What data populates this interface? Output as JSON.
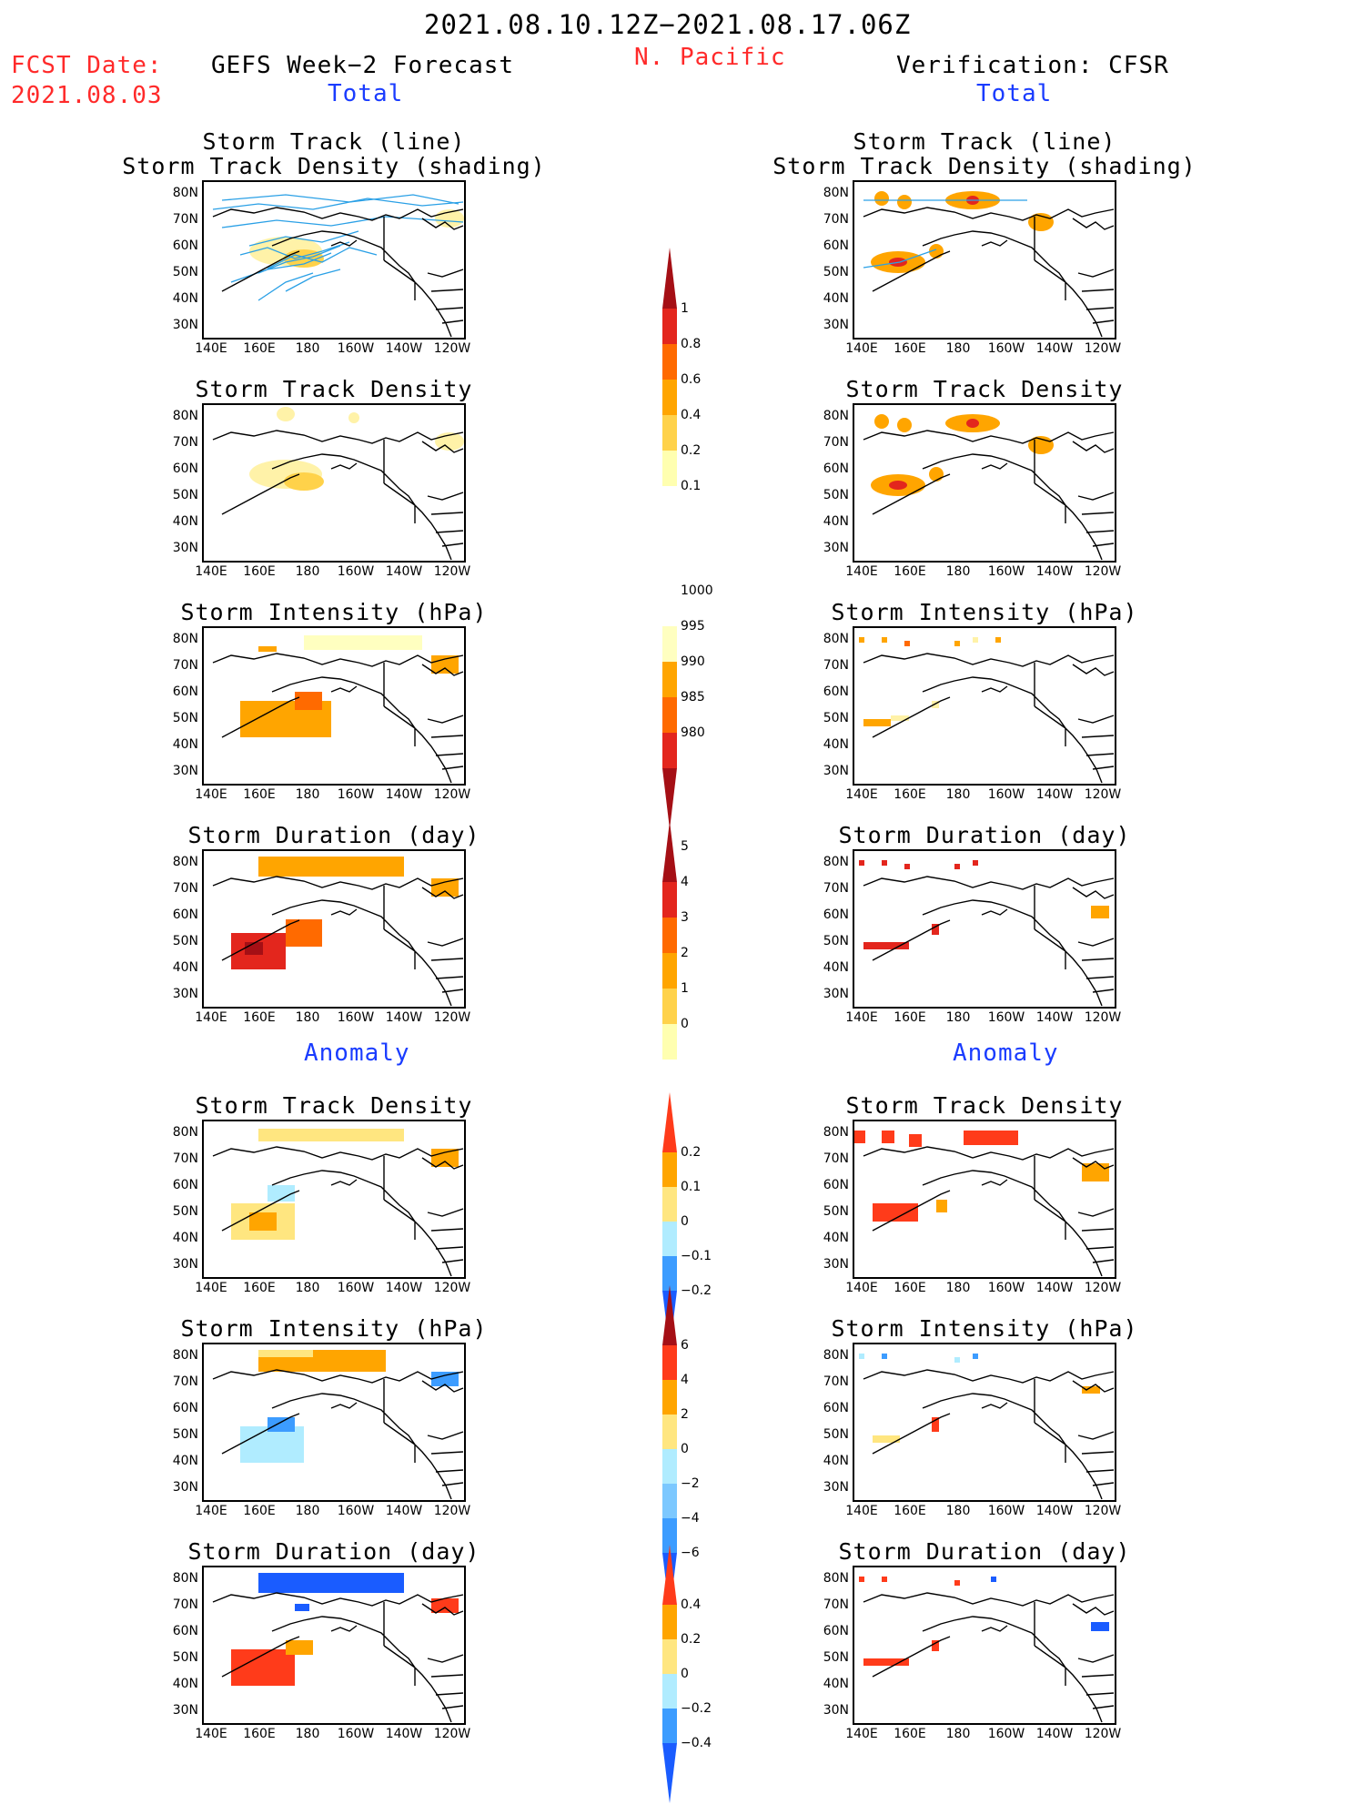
{
  "header": {
    "period": "2021.08.10.12Z−2021.08.17.06Z",
    "fcst_label": "FCST Date:",
    "fcst_date": "2021.08.03",
    "left_title": "GEFS Week−2 Forecast",
    "region": "N. Pacific",
    "right_title": "Verification: CFSR",
    "total_left": "Total",
    "total_right": "Total",
    "anomaly_left": "Anomaly",
    "anomaly_right": "Anomaly"
  },
  "panel_titles": {
    "track_line": "Storm Track (line)",
    "track_shading": "Storm Track Density (shading)",
    "density": "Storm Track Density",
    "intensity": "Storm Intensity (hPa)",
    "duration": "Storm Duration (day)"
  },
  "axes": {
    "lat_labels": [
      "80N",
      "70N",
      "60N",
      "50N",
      "40N",
      "30N"
    ],
    "lon_labels": [
      "140E",
      "160E",
      "180",
      "160W",
      "140W",
      "120W"
    ]
  },
  "colorbars": {
    "density_total": {
      "labels": [
        "1",
        "0.8",
        "0.6",
        "0.4",
        "0.2",
        "0.1"
      ],
      "colors": [
        "#a50f15",
        "#e3261d",
        "#ff6a00",
        "#ffa500",
        "#ffd24a",
        "#ffffb0"
      ]
    },
    "intensity_total": {
      "labels": [
        "1000",
        "995",
        "990",
        "985",
        "980"
      ],
      "colors": [
        "#ffffc0",
        "#ffa500",
        "#ff6a00",
        "#e3261d",
        "#a50f15"
      ]
    },
    "duration_total": {
      "labels": [
        "5",
        "4",
        "3",
        "2",
        "1",
        "0"
      ],
      "colors": [
        "#a50f15",
        "#e3261d",
        "#ff6a00",
        "#ffa500",
        "#ffd24a",
        "#ffffb0"
      ]
    },
    "density_anom": {
      "labels": [
        "0.2",
        "0.1",
        "0",
        "−0.1",
        "−0.2"
      ],
      "colors": [
        "#ff3b1a",
        "#ffa500",
        "#ffe680",
        "#b0ecff",
        "#3c9cff",
        "#1a5cff"
      ]
    },
    "intensity_anom": {
      "labels": [
        "6",
        "4",
        "2",
        "0",
        "−2",
        "−4",
        "−6"
      ],
      "colors": [
        "#a50f15",
        "#ff3b1a",
        "#ffa500",
        "#ffe680",
        "#b0ecff",
        "#7cc8ff",
        "#3c9cff",
        "#1a5cff"
      ]
    },
    "duration_anom": {
      "labels": [
        "0.4",
        "0.2",
        "0",
        "−0.2",
        "−0.4"
      ],
      "colors": [
        "#ff3b1a",
        "#ffa500",
        "#ffe680",
        "#b0ecff",
        "#3c9cff",
        "#1a5cff"
      ]
    }
  }
}
